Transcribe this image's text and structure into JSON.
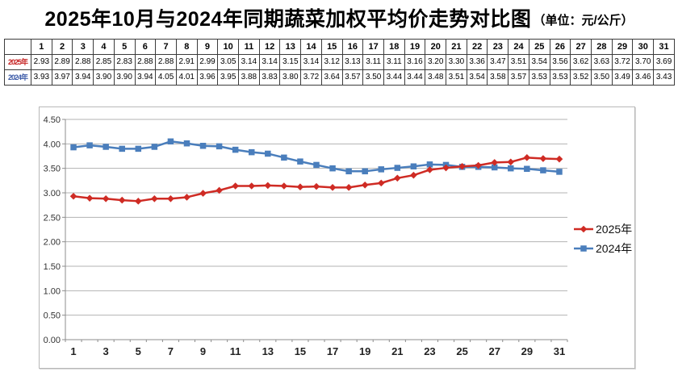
{
  "title": {
    "main": "2025年10月与2024年同期蔬菜加权平均价走势对比图",
    "unit": "（单位：元/公斤）"
  },
  "table": {
    "days": [
      "1",
      "2",
      "3",
      "4",
      "5",
      "6",
      "7",
      "8",
      "9",
      "10",
      "11",
      "12",
      "13",
      "14",
      "15",
      "16",
      "17",
      "18",
      "19",
      "20",
      "21",
      "22",
      "23",
      "24",
      "25",
      "26",
      "27",
      "28",
      "29",
      "30",
      "31"
    ],
    "rows": [
      {
        "label": "2025年",
        "color": "#c62222",
        "values": [
          "2.93",
          "2.89",
          "2.88",
          "2.85",
          "2.83",
          "2.88",
          "2.88",
          "2.91",
          "2.99",
          "3.05",
          "3.14",
          "3.14",
          "3.15",
          "3.14",
          "3.12",
          "3.13",
          "3.11",
          "3.11",
          "3.16",
          "3.20",
          "3.30",
          "3.36",
          "3.47",
          "3.51",
          "3.54",
          "3.56",
          "3.62",
          "3.63",
          "3.72",
          "3.70",
          "3.69"
        ]
      },
      {
        "label": "2024年",
        "color": "#3c5ba8",
        "values": [
          "3.93",
          "3.97",
          "3.94",
          "3.90",
          "3.90",
          "3.94",
          "4.05",
          "4.01",
          "3.96",
          "3.95",
          "3.88",
          "3.83",
          "3.80",
          "3.72",
          "3.64",
          "3.57",
          "3.50",
          "3.44",
          "3.44",
          "3.48",
          "3.51",
          "3.54",
          "3.58",
          "3.57",
          "3.53",
          "3.53",
          "3.52",
          "3.50",
          "3.49",
          "3.46",
          "3.43"
        ]
      }
    ]
  },
  "chart_data": {
    "type": "line",
    "title": "2025年10月与2024年同期蔬菜加权平均价走势对比图",
    "unit_label": "元/公斤",
    "x": [
      1,
      2,
      3,
      4,
      5,
      6,
      7,
      8,
      9,
      10,
      11,
      12,
      13,
      14,
      15,
      16,
      17,
      18,
      19,
      20,
      21,
      22,
      23,
      24,
      25,
      26,
      27,
      28,
      29,
      30,
      31
    ],
    "series": [
      {
        "name": "2025年",
        "color": "#cf2b24",
        "marker": "diamond",
        "values": [
          2.93,
          2.89,
          2.88,
          2.85,
          2.83,
          2.88,
          2.88,
          2.91,
          2.99,
          3.05,
          3.14,
          3.14,
          3.15,
          3.14,
          3.12,
          3.13,
          3.11,
          3.11,
          3.16,
          3.2,
          3.3,
          3.36,
          3.47,
          3.51,
          3.54,
          3.56,
          3.62,
          3.63,
          3.72,
          3.7,
          3.69
        ]
      },
      {
        "name": "2024年",
        "color": "#4a7ebc",
        "marker": "square",
        "values": [
          3.93,
          3.97,
          3.94,
          3.9,
          3.9,
          3.94,
          4.05,
          4.01,
          3.96,
          3.95,
          3.88,
          3.83,
          3.8,
          3.72,
          3.64,
          3.57,
          3.5,
          3.44,
          3.44,
          3.48,
          3.51,
          3.54,
          3.58,
          3.57,
          3.53,
          3.53,
          3.52,
          3.5,
          3.49,
          3.46,
          3.43
        ]
      }
    ],
    "ylim": [
      0,
      4.5
    ],
    "ytick_labels": [
      "0.00",
      "0.50",
      "1.00",
      "1.50",
      "2.00",
      "2.50",
      "3.00",
      "3.50",
      "4.00",
      "4.50"
    ],
    "xtick_labels": [
      "1",
      "3",
      "5",
      "7",
      "9",
      "11",
      "13",
      "15",
      "17",
      "19",
      "21",
      "23",
      "25",
      "27",
      "29",
      "31"
    ],
    "grid": true,
    "legend_position": "right",
    "grid_color": "#b3b3b3",
    "axis_color": "#8c8c8c",
    "tick_label_color": "#333333"
  }
}
